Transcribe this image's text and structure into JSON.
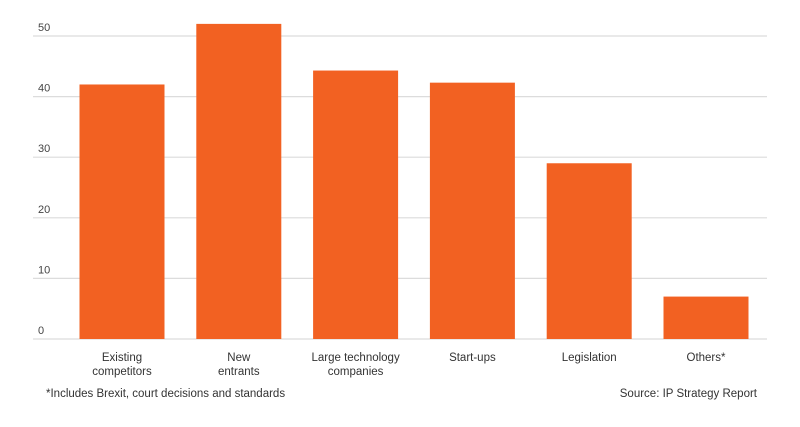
{
  "chart_data": {
    "type": "bar",
    "title": "",
    "xlabel": "",
    "ylabel": "",
    "categories": [
      [
        "Existing",
        "competitors"
      ],
      [
        "New",
        "entrants"
      ],
      [
        "Large technology",
        "companies"
      ],
      [
        "Start-ups"
      ],
      [
        "Legislation"
      ],
      [
        "Others*"
      ]
    ],
    "values": [
      42,
      52,
      44.3,
      42.3,
      29,
      7
    ],
    "ylim": [
      0,
      50
    ],
    "yticks": [
      0,
      10,
      20,
      30,
      40,
      50
    ],
    "grid": true,
    "bar_color": "#F26122",
    "footnote": "*Includes Brexit, court decisions and standards",
    "source": "Source: IP Strategy Report"
  }
}
